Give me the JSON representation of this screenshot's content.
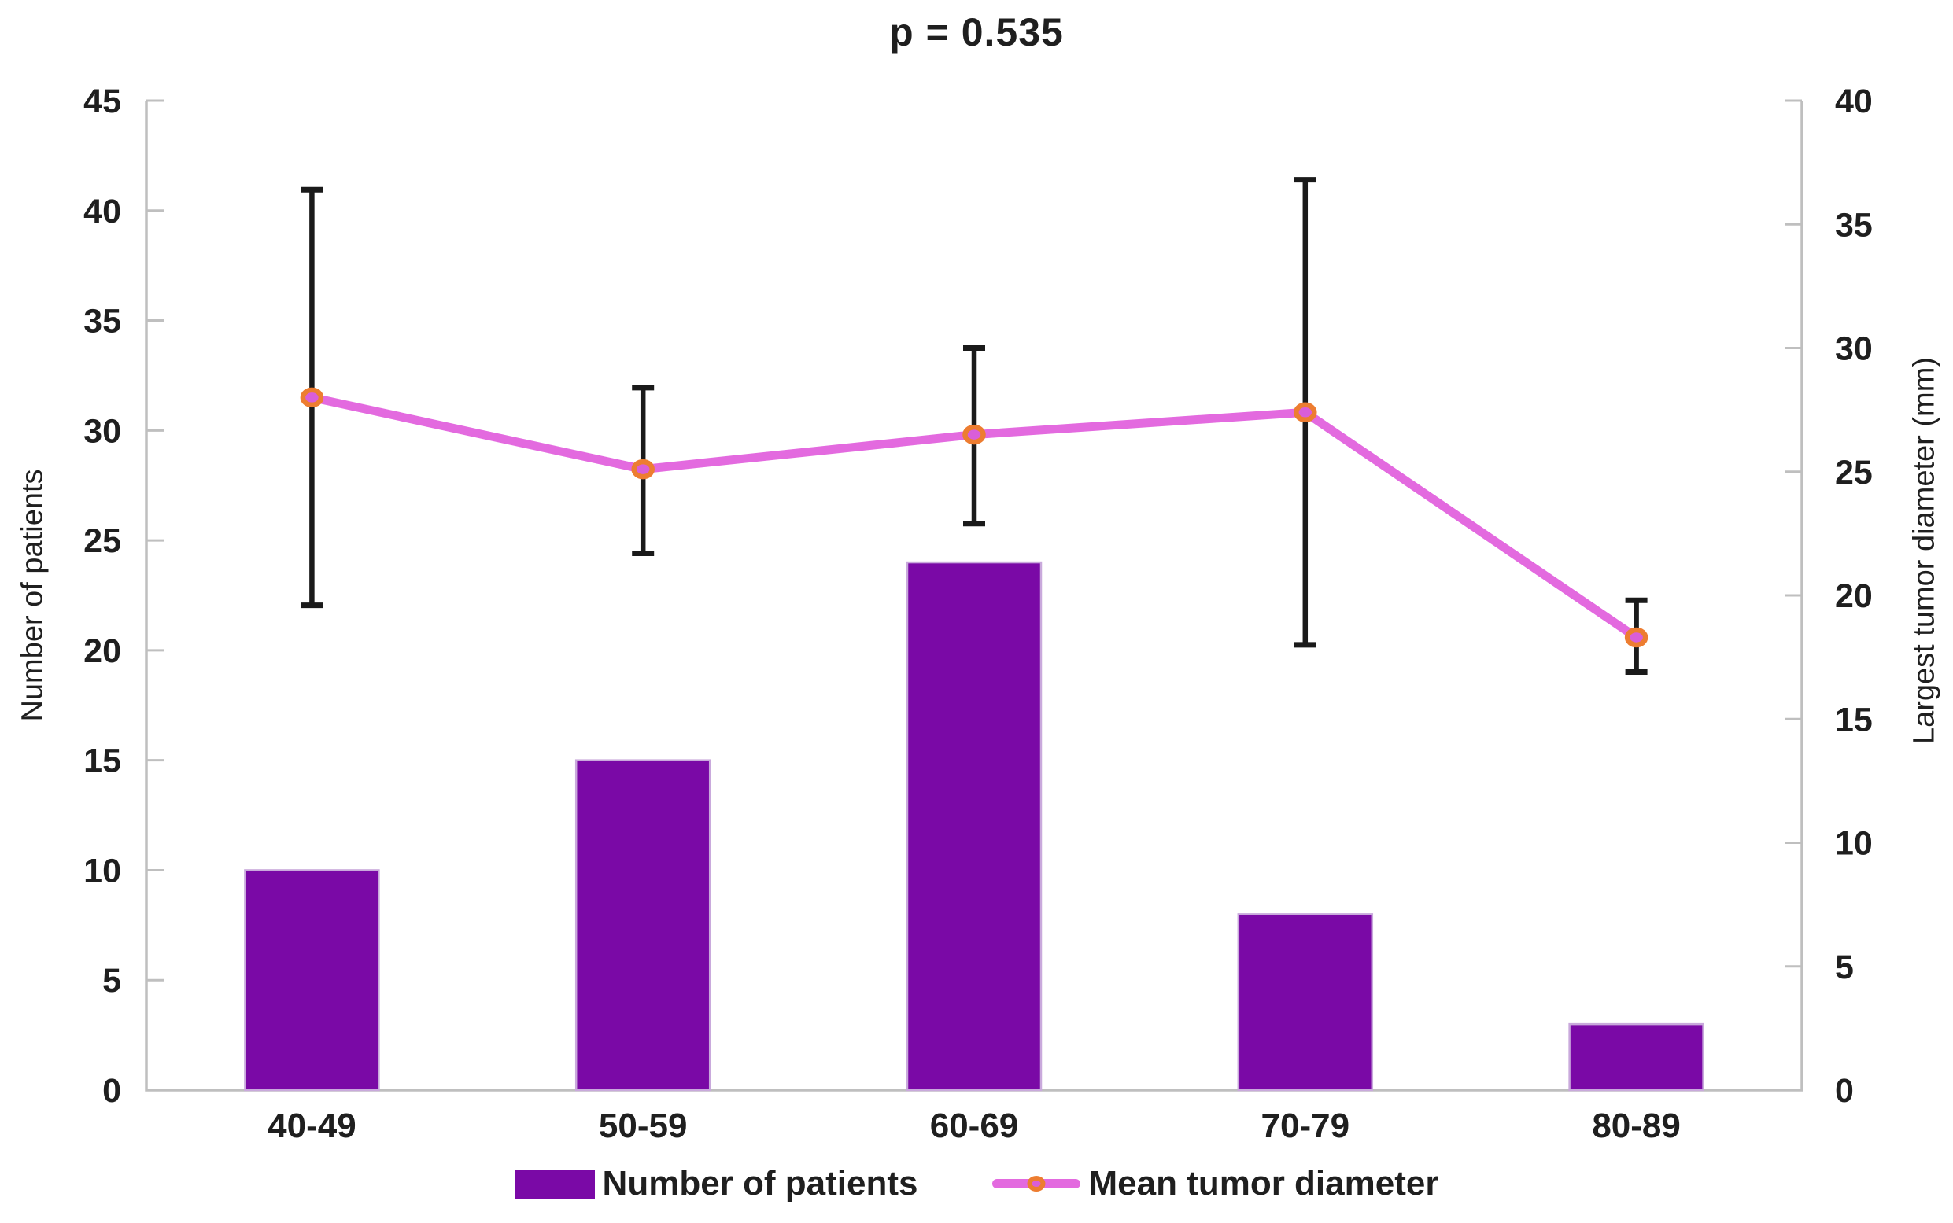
{
  "chart_data": {
    "type": "bar",
    "subtype": "combo-bar-line-with-error-bars",
    "title": "p = 0.535",
    "categories": [
      "40-49",
      "50-59",
      "60-69",
      "70-79",
      "80-89"
    ],
    "series": [
      {
        "name": "Number of patients",
        "type": "bar",
        "axis": "left",
        "values": [
          10,
          15,
          24,
          8,
          3
        ],
        "color": "#7A09A6",
        "edge_color": "#C9A9DC"
      },
      {
        "name": "Mean tumor diameter",
        "type": "line",
        "axis": "right",
        "values": [
          28.0,
          25.1,
          26.5,
          27.4,
          18.3
        ],
        "error_low": [
          19.6,
          21.7,
          22.9,
          18.0,
          16.9
        ],
        "error_high": [
          36.4,
          28.4,
          30.0,
          36.8,
          19.8
        ],
        "line_color": "#E36ADF",
        "marker_fill": "#D95ED9",
        "marker_ring": "#ED7D31",
        "error_color": "#1a1a1a"
      }
    ],
    "left_axis": {
      "label": "Number of patients",
      "min": 0,
      "max": 45,
      "ticks": [
        0,
        5,
        10,
        15,
        20,
        25,
        30,
        35,
        40,
        45
      ]
    },
    "right_axis": {
      "label": "Largest tumor diameter (mm)",
      "min": 0,
      "max": 40,
      "ticks": [
        0,
        5,
        10,
        15,
        20,
        25,
        30,
        35,
        40
      ]
    },
    "xlabel": "",
    "grid": false,
    "legend_position": "bottom",
    "axis_color": "#BFBFBF",
    "text_color": "#1f1f1f"
  }
}
